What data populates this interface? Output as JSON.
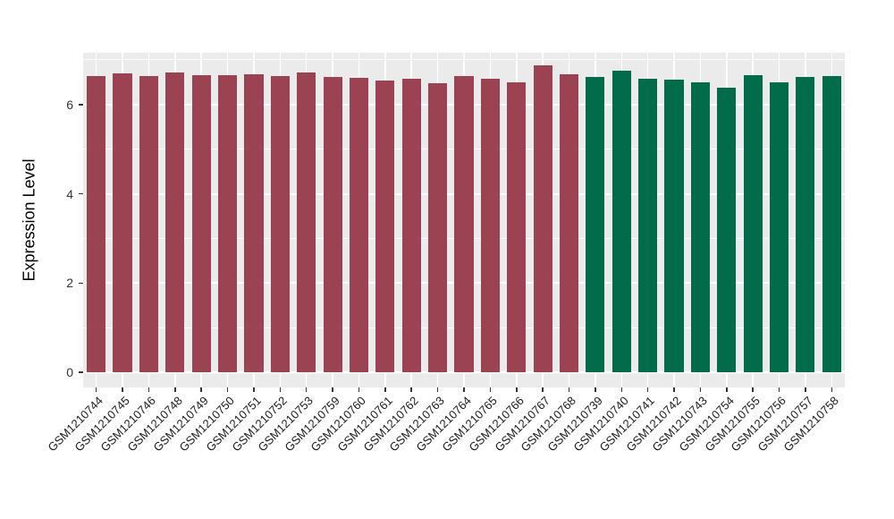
{
  "chart_data": {
    "type": "bar",
    "title": "",
    "xlabel": "",
    "ylabel": "Expression Level",
    "ylim": [
      0,
      7.16
    ],
    "yticks_major": [
      0,
      2,
      4,
      6
    ],
    "yticks_minor": [
      1,
      3,
      5,
      7
    ],
    "grid": true,
    "legend": false,
    "categories": [
      "GSM1210744",
      "GSM1210745",
      "GSM1210746",
      "GSM1210748",
      "GSM1210749",
      "GSM1210750",
      "GSM1210751",
      "GSM1210752",
      "GSM1210753",
      "GSM1210759",
      "GSM1210760",
      "GSM1210761",
      "GSM1210762",
      "GSM1210763",
      "GSM1210764",
      "GSM1210765",
      "GSM1210766",
      "GSM1210767",
      "GSM1210768",
      "GSM1210739",
      "GSM1210740",
      "GSM1210741",
      "GSM1210742",
      "GSM1210743",
      "GSM1210754",
      "GSM1210755",
      "GSM1210756",
      "GSM1210757",
      "GSM1210758"
    ],
    "values": [
      6.63,
      6.69,
      6.64,
      6.71,
      6.66,
      6.65,
      6.68,
      6.63,
      6.72,
      6.61,
      6.6,
      6.53,
      6.57,
      6.47,
      6.64,
      6.57,
      6.49,
      6.87,
      6.67,
      6.62,
      6.75,
      6.57,
      6.55,
      6.5,
      6.37,
      6.65,
      6.49,
      6.61,
      6.63
    ],
    "bar_groups": [
      "maroon",
      "maroon",
      "maroon",
      "maroon",
      "maroon",
      "maroon",
      "maroon",
      "maroon",
      "maroon",
      "maroon",
      "maroon",
      "maroon",
      "maroon",
      "maroon",
      "maroon",
      "maroon",
      "maroon",
      "maroon",
      "maroon",
      "green",
      "green",
      "green",
      "green",
      "green",
      "green",
      "green",
      "green",
      "green",
      "green"
    ],
    "group_colors": {
      "maroon": "#9B4353",
      "green": "#026B4A"
    },
    "panel_background": "#EBEBEB",
    "grid_color": "#FFFFFF"
  }
}
